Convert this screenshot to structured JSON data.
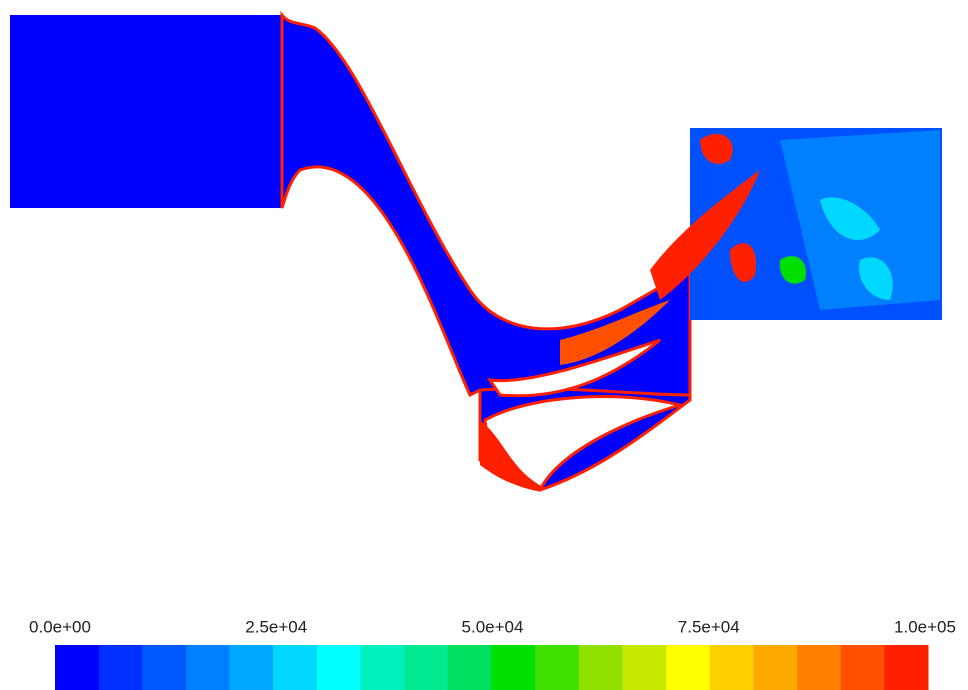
{
  "chart_data": {
    "type": "contour",
    "xlim": [
      0,
      100000
    ],
    "xticks": [
      {
        "value": 0,
        "label": "0.0e+00"
      },
      {
        "value": 25000,
        "label": "2.5e+04"
      },
      {
        "value": 50000,
        "label": "5.0e+04"
      },
      {
        "value": 75000,
        "label": "7.5e+04"
      },
      {
        "value": 100000,
        "label": "1.0e+05"
      }
    ],
    "colors": [
      "#0000ff",
      "#0030ff",
      "#0058ff",
      "#0080ff",
      "#00a8ff",
      "#00d8ff",
      "#00ffff",
      "#00f0c0",
      "#00e890",
      "#00e060",
      "#00e000",
      "#40e000",
      "#90e000",
      "#c8e800",
      "#ffff00",
      "#ffd000",
      "#ffa800",
      "#ff8000",
      "#ff5000",
      "#ff2000"
    ]
  }
}
